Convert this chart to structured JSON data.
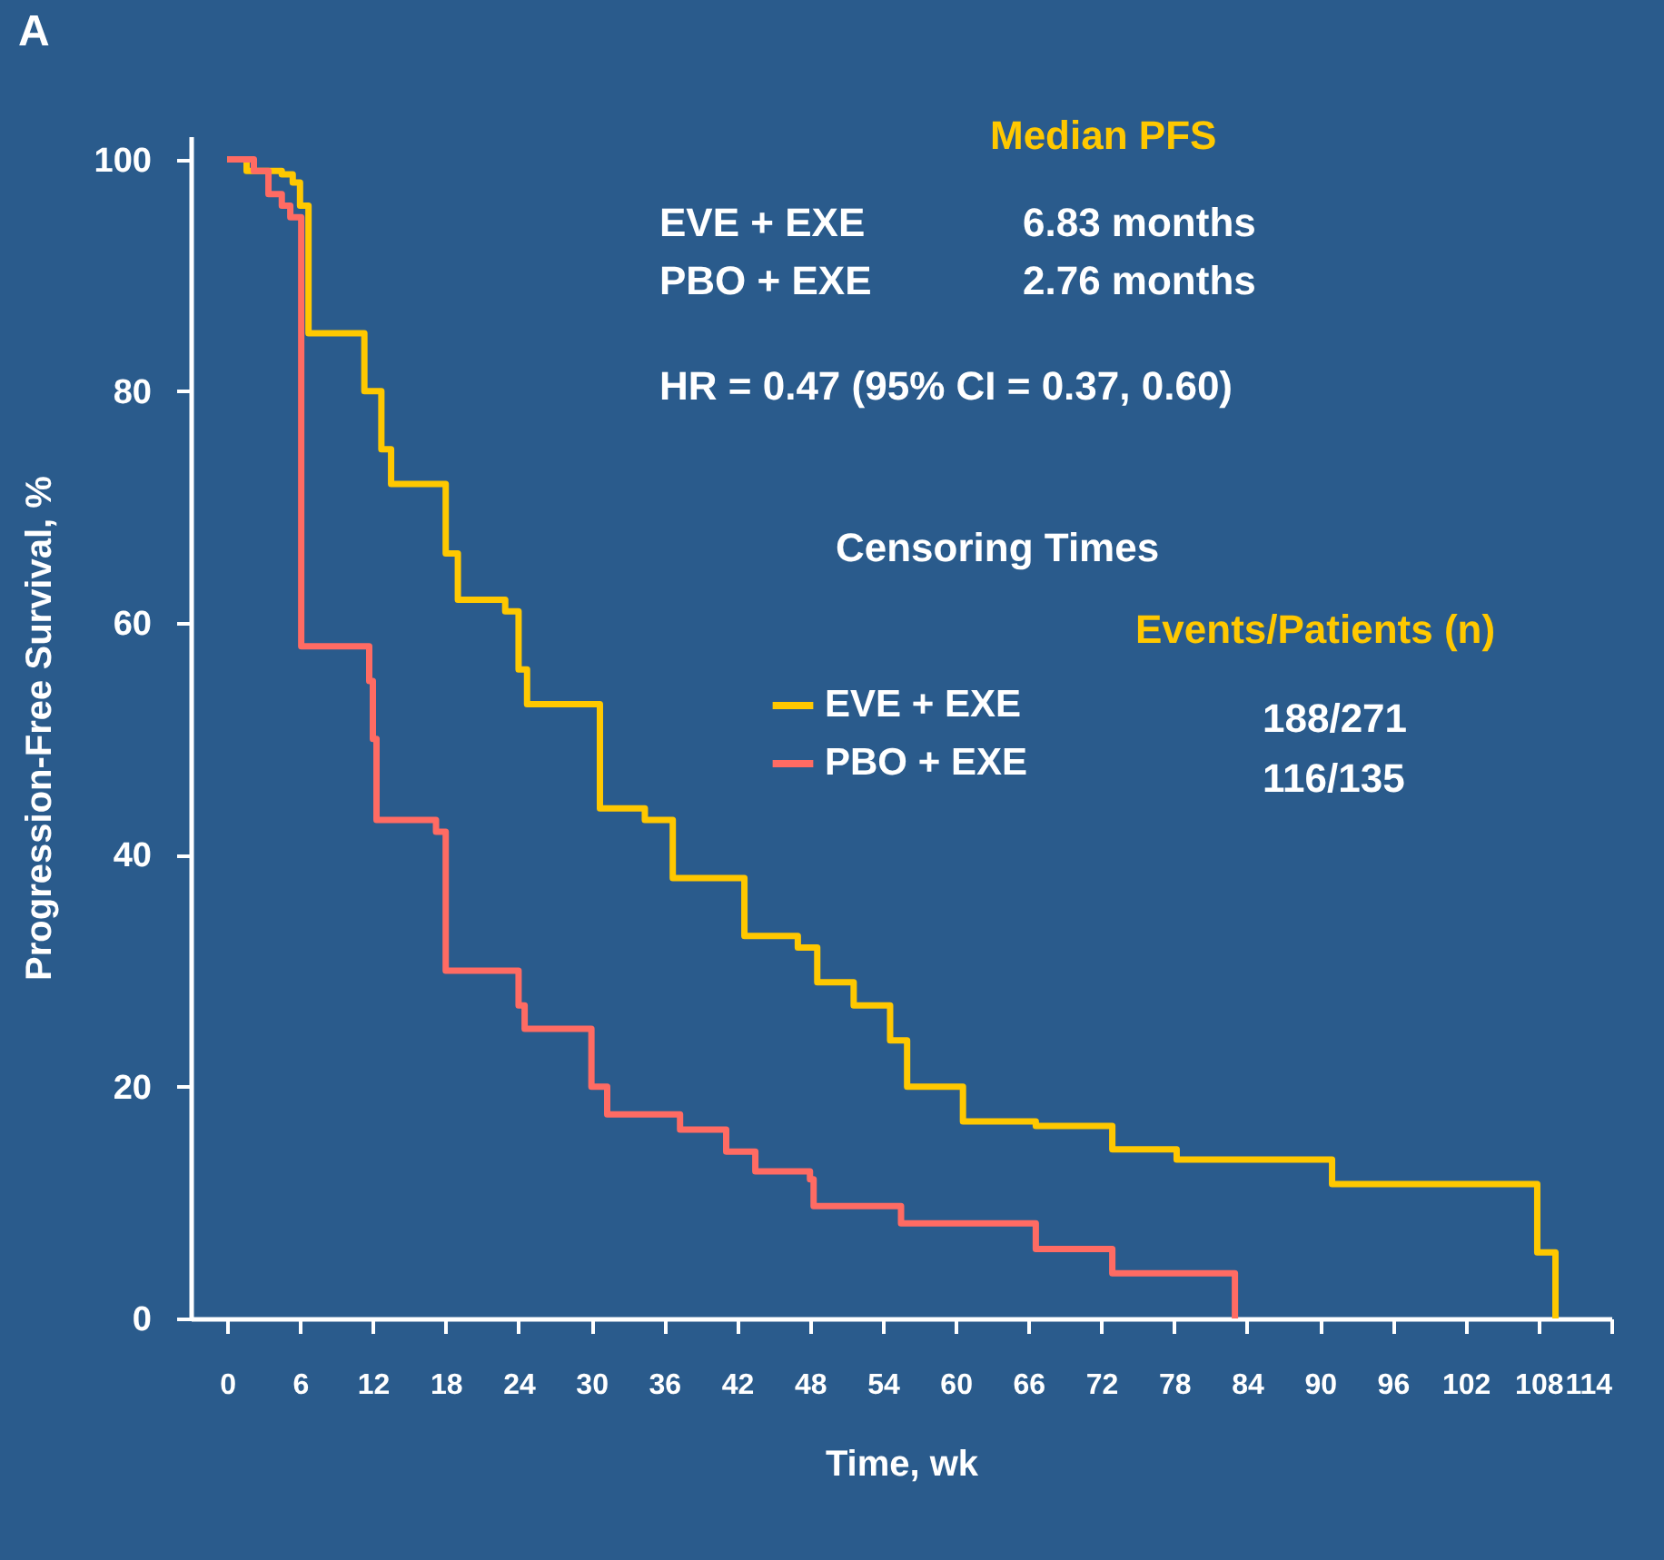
{
  "chart_data": {
    "type": "step",
    "title": "A",
    "xlabel": "Time, wk",
    "ylabel": "Progression-Free Survival, %",
    "xlim": [
      -3,
      114
    ],
    "xticks": [
      0,
      6,
      12,
      18,
      24,
      30,
      36,
      42,
      48,
      54,
      60,
      66,
      72,
      78,
      84,
      90,
      96,
      102,
      108,
      114
    ],
    "ylim": [
      0,
      102
    ],
    "yticks": [
      0,
      20,
      40,
      60,
      80,
      100
    ],
    "grid": false,
    "legend": "right",
    "series": [
      {
        "name": "EVE + EXE",
        "color": "#ffc800",
        "x": [
          0,
          1.6,
          4.5,
          5.4,
          6,
          6.7,
          10.5,
          11.3,
          12.7,
          13.5,
          17.2,
          18,
          19,
          22.9,
          24,
          24.7,
          29.2,
          30.7,
          34.4,
          36.7,
          39.6,
          42.6,
          47,
          48.6,
          51.6,
          54.6,
          56,
          59,
          60.6,
          66.6,
          72.9,
          78.2,
          91,
          107.9,
          109.4
        ],
        "values": [
          100,
          99,
          98.7,
          98,
          96,
          85,
          85,
          80,
          75,
          72,
          72,
          66,
          62,
          61,
          56,
          53,
          53,
          44,
          43,
          38,
          38,
          33,
          32,
          29,
          27,
          24,
          20,
          20,
          17,
          16.6,
          14.6,
          13.7,
          11.6,
          5.7,
          0
        ]
      },
      {
        "name": "PBO + EXE",
        "color": "#ff6b63",
        "x": [
          0,
          2.2,
          3.4,
          4.5,
          5.2,
          6.1,
          11.2,
          11.7,
          12,
          12.3,
          17.2,
          18,
          22.4,
          24,
          24.5,
          29.2,
          30,
          31.3,
          37.3,
          41.1,
          43.5,
          48,
          48.3,
          55.5,
          66.6,
          72.9,
          83
        ],
        "values": [
          100,
          99,
          97,
          96,
          95,
          58,
          58,
          55,
          50,
          43,
          42,
          30,
          30,
          27,
          25,
          25,
          20,
          17.6,
          16.3,
          14.4,
          12.7,
          12,
          9.7,
          8.2,
          6,
          3.9,
          0
        ]
      }
    ],
    "annotations": [
      "Median PFS",
      "EVE + EXE",
      "6.83 months",
      "PBO + EXE",
      "2.76 months",
      "HR = 0.47 (95% CI = 0.37, 0.60)",
      "Censoring Times",
      "Events/Patients (n)",
      "188/271",
      "116/135"
    ]
  }
}
